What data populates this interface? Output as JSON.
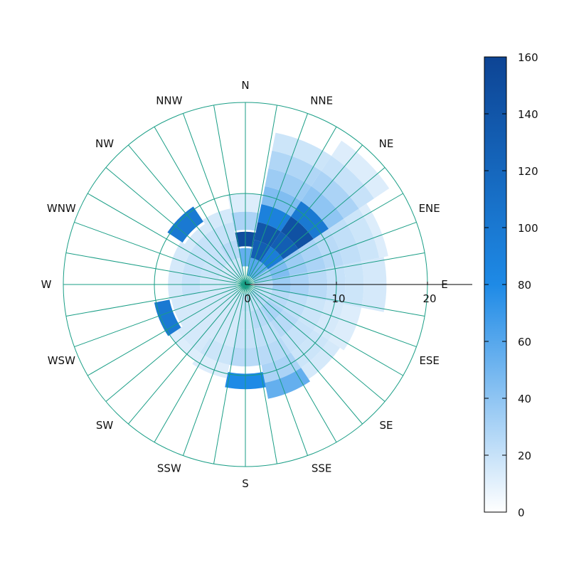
{
  "chart_data": {
    "type": "heatmap",
    "subtype": "polar wind rose",
    "direction_labels": [
      "N",
      "NNE",
      "NE",
      "ENE",
      "E",
      "ESE",
      "SE",
      "SSE",
      "S",
      "SSW",
      "SW",
      "WSW",
      "W",
      "WNW",
      "NW",
      "NNW"
    ],
    "radial_axis": {
      "range": [
        0,
        20
      ],
      "ticks": [
        0,
        10,
        20
      ],
      "tick_labels": [
        "0",
        "10",
        "20"
      ]
    },
    "grid": true,
    "colorbar": {
      "range": [
        0,
        160
      ],
      "ticks": [
        0,
        20,
        40,
        60,
        80,
        100,
        120,
        140,
        160
      ],
      "tick_labels": [
        "0",
        "20",
        "40",
        "60",
        "80",
        "100",
        "120",
        "140",
        "160"
      ],
      "colors": [
        "#ffffff",
        "#1e8ae6",
        "#0d4494"
      ]
    },
    "title": "",
    "xlabel": "",
    "ylabel": "",
    "cells": [
      {
        "sector": "N",
        "r": [
          4.2,
          5.8
        ],
        "value": 150
      },
      {
        "sector": "N",
        "r": [
          2.0,
          4.0
        ],
        "value": 55
      },
      {
        "sector": "N",
        "r": [
          6.0,
          8.0
        ],
        "value": 30
      },
      {
        "sector": "N",
        "r": [
          8.0,
          10.0
        ],
        "value": 12
      },
      {
        "sector": "NNE",
        "r": [
          1.0,
          3.0
        ],
        "value": 60
      },
      {
        "sector": "NNE",
        "r": [
          3.0,
          5.0
        ],
        "value": 130
      },
      {
        "sector": "NNE",
        "r": [
          5.0,
          7.0
        ],
        "value": 140
      },
      {
        "sector": "NNE",
        "r": [
          7.0,
          9.0
        ],
        "value": 90
      },
      {
        "sector": "NNE",
        "r": [
          9.0,
          11.0
        ],
        "value": 45
      },
      {
        "sector": "NNE",
        "r": [
          11.0,
          13.0
        ],
        "value": 35
      },
      {
        "sector": "NNE",
        "r": [
          13.0,
          15.0
        ],
        "value": 28
      },
      {
        "sector": "NNE",
        "r": [
          15.0,
          17.0
        ],
        "value": 18
      },
      {
        "sector": "NE",
        "r": [
          1.0,
          3.0
        ],
        "value": 55
      },
      {
        "sector": "NE",
        "r": [
          3.0,
          5.0
        ],
        "value": 95
      },
      {
        "sector": "NE",
        "r": [
          5.0,
          7.0
        ],
        "value": 130
      },
      {
        "sector": "NE",
        "r": [
          7.0,
          9.0
        ],
        "value": 145
      },
      {
        "sector": "NE",
        "r": [
          9.0,
          11.0
        ],
        "value": 100
      },
      {
        "sector": "NE",
        "r": [
          11.0,
          13.0
        ],
        "value": 40
      },
      {
        "sector": "NE",
        "r": [
          13.0,
          15.0
        ],
        "value": 30
      },
      {
        "sector": "NE",
        "r": [
          15.0,
          17.0
        ],
        "value": 20
      },
      {
        "sector": "NE",
        "r": [
          17.0,
          19.0
        ],
        "value": 12
      },
      {
        "sector": "ENE",
        "r": [
          1.0,
          3.0
        ],
        "value": 35
      },
      {
        "sector": "ENE",
        "r": [
          3.0,
          5.0
        ],
        "value": 45
      },
      {
        "sector": "ENE",
        "r": [
          5.0,
          7.0
        ],
        "value": 35
      },
      {
        "sector": "ENE",
        "r": [
          7.0,
          9.0
        ],
        "value": 30
      },
      {
        "sector": "ENE",
        "r": [
          9.0,
          11.0
        ],
        "value": 25
      },
      {
        "sector": "ENE",
        "r": [
          11.0,
          13.0
        ],
        "value": 22
      },
      {
        "sector": "ENE",
        "r": [
          13.0,
          15.0
        ],
        "value": 18
      },
      {
        "sector": "ENE",
        "r": [
          15.0,
          16.0
        ],
        "value": 12
      },
      {
        "sector": "E",
        "r": [
          1.0,
          3.0
        ],
        "value": 25
      },
      {
        "sector": "E",
        "r": [
          3.0,
          5.0
        ],
        "value": 35
      },
      {
        "sector": "E",
        "r": [
          5.0,
          7.0
        ],
        "value": 30
      },
      {
        "sector": "E",
        "r": [
          7.0,
          9.0
        ],
        "value": 25
      },
      {
        "sector": "E",
        "r": [
          9.0,
          11.0
        ],
        "value": 20
      },
      {
        "sector": "E",
        "r": [
          11.0,
          13.0
        ],
        "value": 18
      },
      {
        "sector": "E",
        "r": [
          13.0,
          15.5
        ],
        "value": 15
      },
      {
        "sector": "ESE",
        "r": [
          1.0,
          3.0
        ],
        "value": 20
      },
      {
        "sector": "ESE",
        "r": [
          3.0,
          5.0
        ],
        "value": 25
      },
      {
        "sector": "ESE",
        "r": [
          5.0,
          7.0
        ],
        "value": 22
      },
      {
        "sector": "ESE",
        "r": [
          7.0,
          9.0
        ],
        "value": 18
      },
      {
        "sector": "ESE",
        "r": [
          9.0,
          11.0
        ],
        "value": 15
      },
      {
        "sector": "ESE",
        "r": [
          11.0,
          13.0
        ],
        "value": 12
      },
      {
        "sector": "SE",
        "r": [
          1.0,
          3.0
        ],
        "value": 25
      },
      {
        "sector": "SE",
        "r": [
          3.0,
          5.0
        ],
        "value": 30
      },
      {
        "sector": "SE",
        "r": [
          5.0,
          7.0
        ],
        "value": 25
      },
      {
        "sector": "SE",
        "r": [
          7.0,
          9.0
        ],
        "value": 20
      },
      {
        "sector": "SE",
        "r": [
          9.0,
          11.0
        ],
        "value": 18
      },
      {
        "sector": "SE",
        "r": [
          11.0,
          12.5
        ],
        "value": 15
      },
      {
        "sector": "SSE",
        "r": [
          1.0,
          3.0
        ],
        "value": 20
      },
      {
        "sector": "SSE",
        "r": [
          3.0,
          5.0
        ],
        "value": 25
      },
      {
        "sector": "SSE",
        "r": [
          5.0,
          7.0
        ],
        "value": 22
      },
      {
        "sector": "SSE",
        "r": [
          7.0,
          9.0
        ],
        "value": 25
      },
      {
        "sector": "SSE",
        "r": [
          9.0,
          11.0
        ],
        "value": 30
      },
      {
        "sector": "SSE",
        "r": [
          11.0,
          12.8
        ],
        "value": 55
      },
      {
        "sector": "S",
        "r": [
          1.0,
          3.0
        ],
        "value": 20
      },
      {
        "sector": "S",
        "r": [
          3.0,
          5.0
        ],
        "value": 18
      },
      {
        "sector": "S",
        "r": [
          5.0,
          7.0
        ],
        "value": 20
      },
      {
        "sector": "S",
        "r": [
          7.0,
          9.0
        ],
        "value": 25
      },
      {
        "sector": "S",
        "r": [
          9.8,
          11.5
        ],
        "value": 80
      },
      {
        "sector": "SSW",
        "r": [
          1.0,
          3.0
        ],
        "value": 15
      },
      {
        "sector": "SSW",
        "r": [
          3.0,
          5.0
        ],
        "value": 15
      },
      {
        "sector": "SSW",
        "r": [
          5.0,
          7.0
        ],
        "value": 15
      },
      {
        "sector": "SSW",
        "r": [
          7.0,
          9.0
        ],
        "value": 18
      },
      {
        "sector": "SSW",
        "r": [
          9.0,
          10.5
        ],
        "value": 12
      },
      {
        "sector": "SW",
        "r": [
          1.0,
          3.0
        ],
        "value": 15
      },
      {
        "sector": "SW",
        "r": [
          3.0,
          5.0
        ],
        "value": 15
      },
      {
        "sector": "SW",
        "r": [
          5.0,
          7.0
        ],
        "value": 15
      },
      {
        "sector": "SW",
        "r": [
          7.0,
          9.0
        ],
        "value": 15
      },
      {
        "sector": "SW",
        "r": [
          9.0,
          10.0
        ],
        "value": 12
      },
      {
        "sector": "WSW",
        "r": [
          1.0,
          3.0
        ],
        "value": 15
      },
      {
        "sector": "WSW",
        "r": [
          3.0,
          5.0
        ],
        "value": 15
      },
      {
        "sector": "WSW",
        "r": [
          5.0,
          7.0
        ],
        "value": 15
      },
      {
        "sector": "WSW",
        "r": [
          7.0,
          8.3
        ],
        "value": 15
      },
      {
        "sector": "WSW",
        "r": [
          8.5,
          10.2
        ],
        "value": 100
      },
      {
        "sector": "W",
        "r": [
          1.0,
          3.0
        ],
        "value": 15
      },
      {
        "sector": "W",
        "r": [
          3.0,
          5.0
        ],
        "value": 15
      },
      {
        "sector": "W",
        "r": [
          5.0,
          7.0
        ],
        "value": 20
      },
      {
        "sector": "W",
        "r": [
          7.0,
          8.5
        ],
        "value": 15
      },
      {
        "sector": "WNW",
        "r": [
          1.0,
          3.0
        ],
        "value": 15
      },
      {
        "sector": "WNW",
        "r": [
          3.0,
          5.0
        ],
        "value": 18
      },
      {
        "sector": "WNW",
        "r": [
          5.0,
          7.0
        ],
        "value": 20
      },
      {
        "sector": "WNW",
        "r": [
          7.0,
          8.5
        ],
        "value": 15
      },
      {
        "sector": "NW",
        "r": [
          1.0,
          3.0
        ],
        "value": 15
      },
      {
        "sector": "NW",
        "r": [
          3.0,
          5.0
        ],
        "value": 20
      },
      {
        "sector": "NW",
        "r": [
          5.0,
          7.0
        ],
        "value": 20
      },
      {
        "sector": "NW",
        "r": [
          7.0,
          8.0
        ],
        "value": 15
      },
      {
        "sector": "NW",
        "r": [
          8.3,
          10.3
        ],
        "value": 100
      },
      {
        "sector": "NNW",
        "r": [
          1.0,
          3.0
        ],
        "value": 18
      },
      {
        "sector": "NNW",
        "r": [
          3.0,
          5.0
        ],
        "value": 25
      },
      {
        "sector": "NNW",
        "r": [
          5.0,
          7.0
        ],
        "value": 20
      },
      {
        "sector": "NNW",
        "r": [
          7.0,
          8.5
        ],
        "value": 15
      }
    ]
  }
}
